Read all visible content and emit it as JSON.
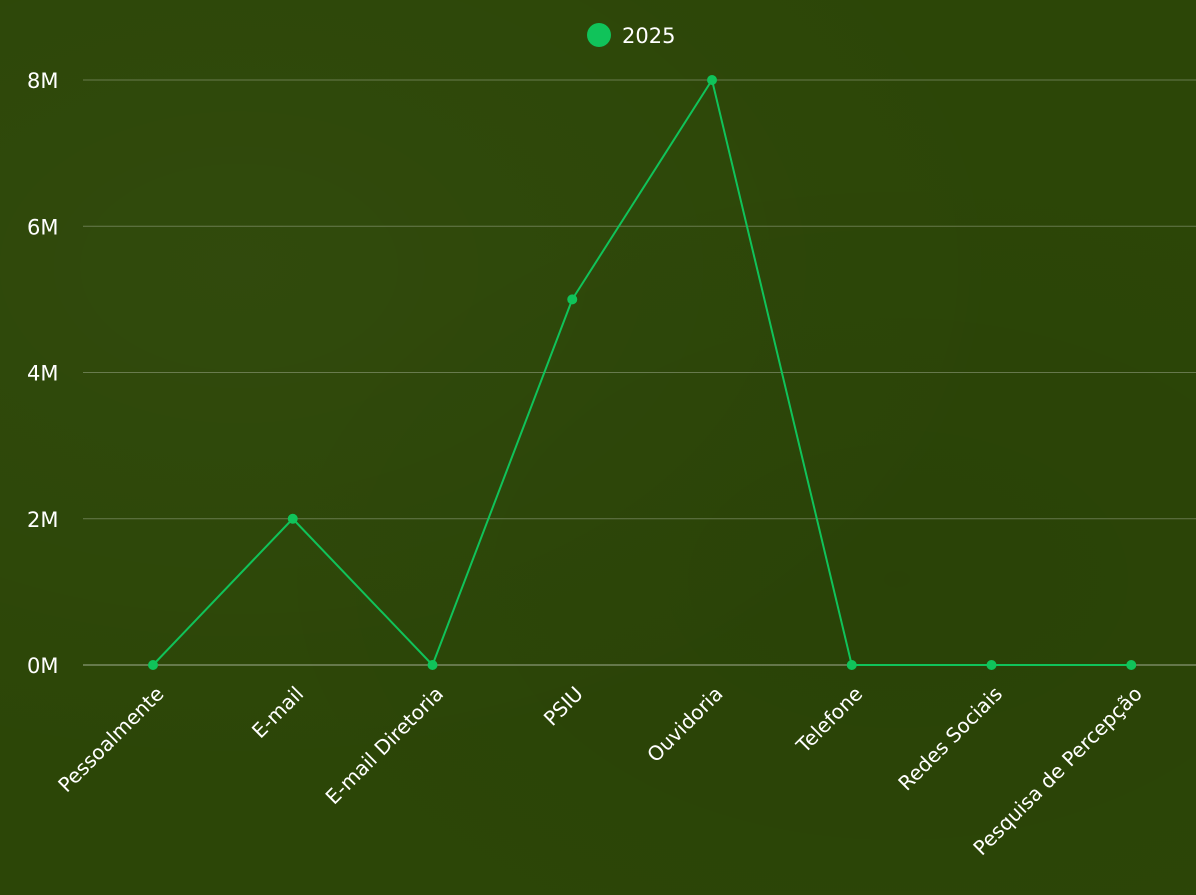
{
  "chart_data": {
    "type": "line",
    "categories": [
      "Pessoalmente",
      "E-mail",
      "E-mail Diretoria",
      "PSIU",
      "Ouvidoria",
      "Telefone",
      "Redes Sociais",
      "Pesquisa de Percepção"
    ],
    "series": [
      {
        "name": "2025",
        "values": [
          0,
          2000000,
          0,
          5000000,
          8000000,
          0,
          0,
          0
        ],
        "color": "#10c35a"
      }
    ],
    "yticks": [
      {
        "value": 0,
        "label": "0M"
      },
      {
        "value": 2000000,
        "label": "2M"
      },
      {
        "value": 4000000,
        "label": "4M"
      },
      {
        "value": 6000000,
        "label": "6M"
      },
      {
        "value": 8000000,
        "label": "8M"
      }
    ],
    "ylim": [
      0,
      8000000
    ],
    "grid": true,
    "legend_position": "top-center",
    "title": "",
    "xlabel": "",
    "ylabel": ""
  }
}
